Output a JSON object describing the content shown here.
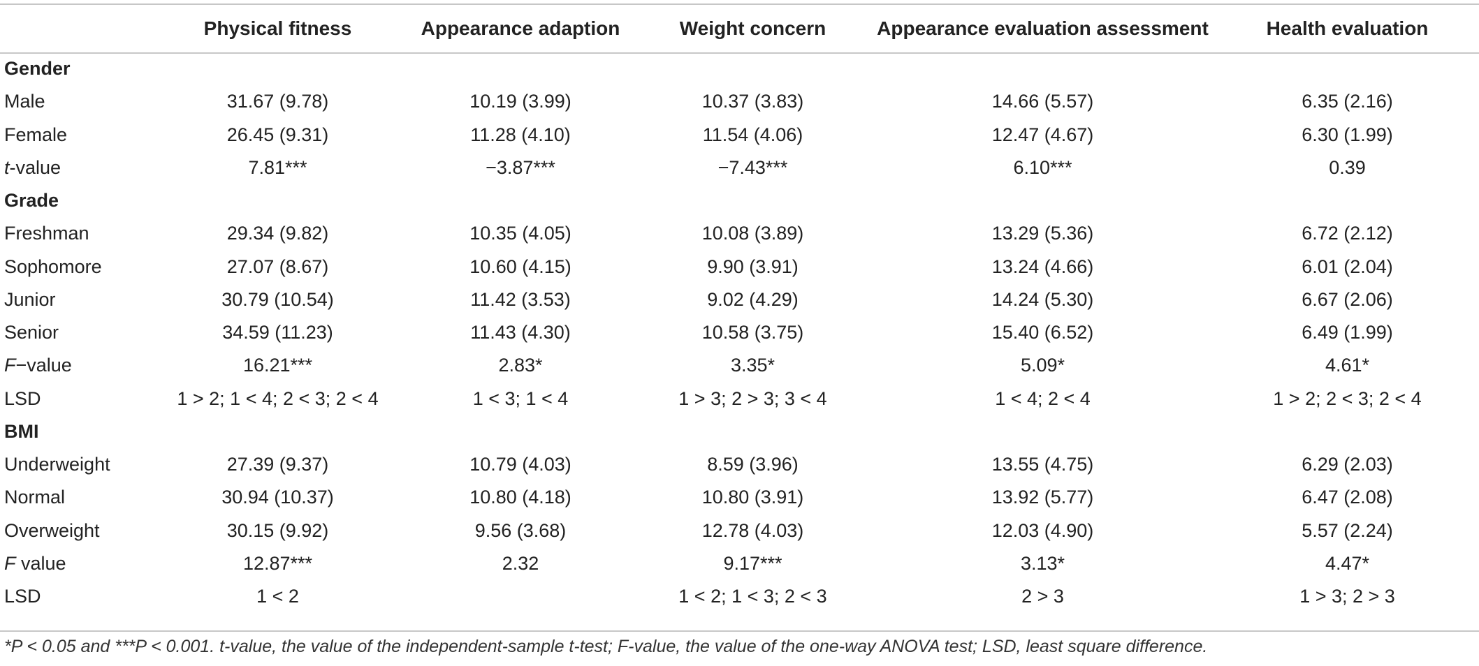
{
  "table": {
    "columns": [
      "",
      "Physical fitness",
      "Appearance adaption",
      "Weight concern",
      "Appearance evaluation assessment",
      "Health evaluation"
    ],
    "rows": [
      {
        "type": "section",
        "label": "Gender",
        "cells": [
          "",
          "",
          "",
          "",
          ""
        ]
      },
      {
        "type": "data",
        "label": "Male",
        "cells": [
          "31.67 (9.78)",
          "10.19 (3.99)",
          "10.37 (3.83)",
          "14.66 (5.57)",
          "6.35 (2.16)"
        ]
      },
      {
        "type": "data",
        "label": "Female",
        "cells": [
          "26.45 (9.31)",
          "11.28 (4.10)",
          "11.54 (4.06)",
          "12.47 (4.67)",
          "6.30 (1.99)"
        ]
      },
      {
        "type": "stat",
        "label_italic": "t",
        "label_rest": "-value",
        "cells": [
          "7.81***",
          "−3.87***",
          "−7.43***",
          "6.10***",
          "0.39"
        ]
      },
      {
        "type": "section",
        "label": "Grade",
        "cells": [
          "",
          "",
          "",
          "",
          ""
        ]
      },
      {
        "type": "data",
        "label": "Freshman",
        "cells": [
          "29.34 (9.82)",
          "10.35 (4.05)",
          "10.08 (3.89)",
          "13.29 (5.36)",
          "6.72 (2.12)"
        ]
      },
      {
        "type": "data",
        "label": "Sophomore",
        "cells": [
          "27.07 (8.67)",
          "10.60 (4.15)",
          "9.90 (3.91)",
          "13.24 (4.66)",
          "6.01 (2.04)"
        ]
      },
      {
        "type": "data",
        "label": "Junior",
        "cells": [
          "30.79 (10.54)",
          "11.42 (3.53)",
          "9.02 (4.29)",
          "14.24 (5.30)",
          "6.67 (2.06)"
        ]
      },
      {
        "type": "data",
        "label": "Senior",
        "cells": [
          "34.59 (11.23)",
          "11.43 (4.30)",
          "10.58 (3.75)",
          "15.40 (6.52)",
          "6.49 (1.99)"
        ]
      },
      {
        "type": "stat",
        "label_italic": "F",
        "label_rest": "−value",
        "cells": [
          "16.21***",
          "2.83*",
          "3.35*",
          "5.09*",
          "4.61*"
        ]
      },
      {
        "type": "data",
        "label": "LSD",
        "cells": [
          "1 > 2; 1 < 4; 2 < 3; 2 < 4",
          "1 < 3; 1 < 4",
          "1 > 3; 2 > 3; 3 < 4",
          "1 < 4; 2 < 4",
          "1 > 2; 2 < 3; 2 < 4"
        ]
      },
      {
        "type": "section",
        "label": "BMI",
        "cells": [
          "",
          "",
          "",
          "",
          ""
        ]
      },
      {
        "type": "data",
        "label": "Underweight",
        "cells": [
          "27.39 (9.37)",
          "10.79 (4.03)",
          "8.59 (3.96)",
          "13.55 (4.75)",
          "6.29 (2.03)"
        ]
      },
      {
        "type": "data",
        "label": "Normal",
        "cells": [
          "30.94 (10.37)",
          "10.80 (4.18)",
          "10.80 (3.91)",
          "13.92 (5.77)",
          "6.47 (2.08)"
        ]
      },
      {
        "type": "data",
        "label": "Overweight",
        "cells": [
          "30.15 (9.92)",
          "9.56 (3.68)",
          "12.78 (4.03)",
          "12.03 (4.90)",
          "5.57 (2.24)"
        ]
      },
      {
        "type": "stat",
        "label_italic": "F",
        "label_rest": " value",
        "cells": [
          "12.87***",
          "2.32",
          "9.17***",
          "3.13*",
          "4.47*"
        ]
      },
      {
        "type": "data",
        "label": "LSD",
        "cells": [
          "1 < 2",
          "",
          "1 < 2; 1 < 3; 2 < 3",
          "2 > 3",
          "1 > 3; 2 > 3"
        ]
      }
    ]
  },
  "footnote": "*P < 0.05 and ***P < 0.001. t-value, the value of the independent-sample t-test; F-value, the value of the one-way ANOVA test; LSD, least square difference."
}
